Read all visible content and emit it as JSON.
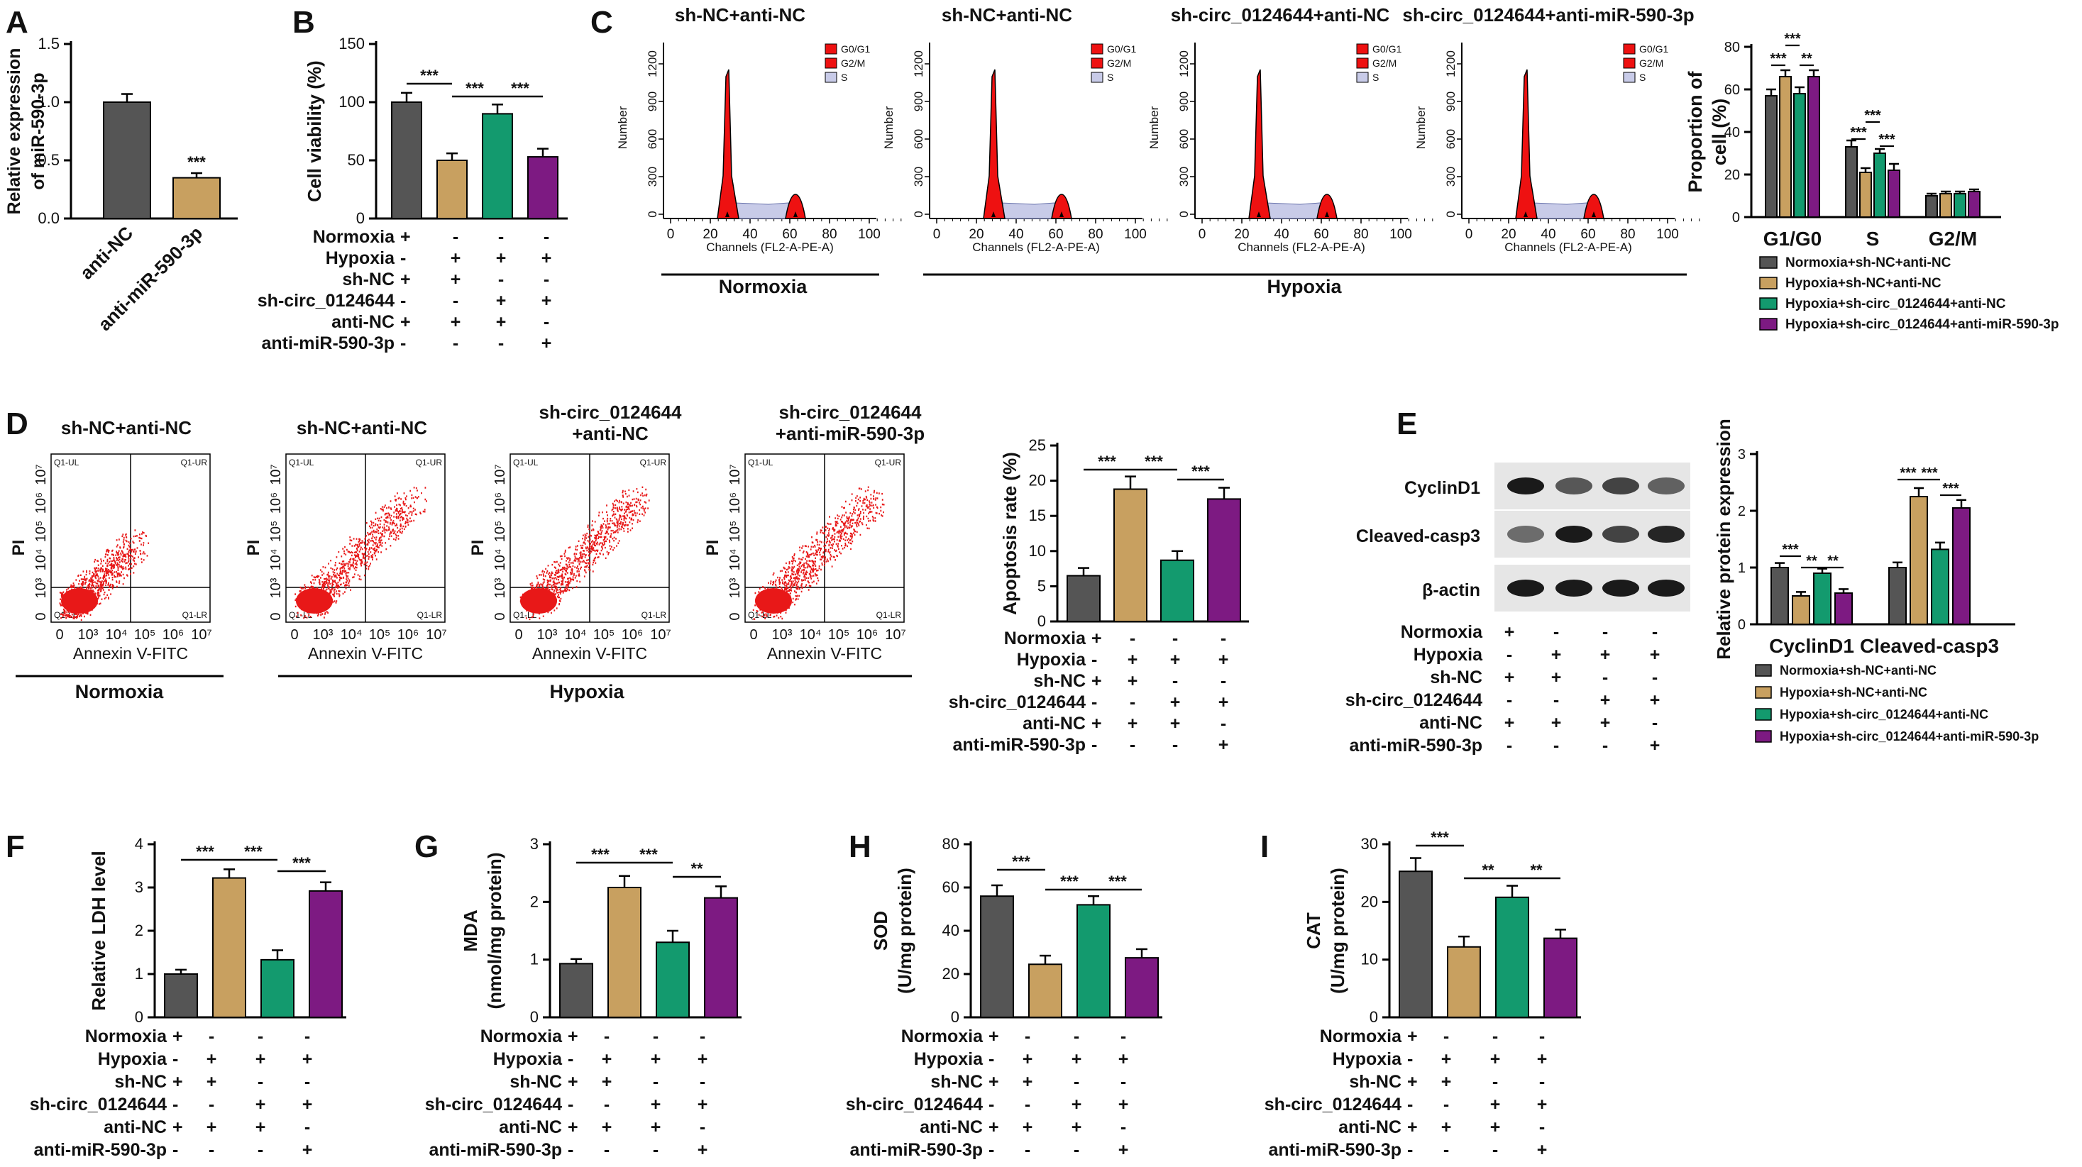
{
  "colors": {
    "c0": "#555555",
    "c1": "#c8a060",
    "c2": "#139a6e",
    "c3": "#7d1a82"
  },
  "panel_letters": [
    "A",
    "B",
    "C",
    "D",
    "E",
    "F",
    "G",
    "H",
    "I"
  ],
  "sig_labels": {
    "s3": "***",
    "s2": "**"
  },
  "condition_table_groups": {
    "cond4": {
      "rows": [
        "Normoxia",
        "Hypoxia",
        "sh-NC",
        "sh-circ_0124644",
        "anti-NC",
        "anti-miR-590-3p"
      ],
      "signs": [
        [
          "+",
          "-",
          "-",
          "-"
        ],
        [
          "-",
          "+",
          "+",
          "+"
        ],
        [
          "+",
          "+",
          "-",
          "-"
        ],
        [
          "-",
          "-",
          "+",
          "+"
        ],
        [
          "+",
          "+",
          "+",
          "-"
        ],
        [
          "-",
          "-",
          "-",
          "+"
        ]
      ]
    }
  },
  "groups": {
    "normoxia": "Normoxia",
    "hypoxia": "Hypoxia"
  },
  "panel_c": {
    "titles": [
      "sh-NC+anti-NC",
      "sh-NC+anti-NC",
      "sh-circ_0124644+anti-NC",
      "sh-circ_0124644+anti-miR-590-3p"
    ],
    "legend": [
      "G0/G1",
      "G2/M",
      "S"
    ],
    "ylabel": "Number",
    "xlabel": "Channels (FL2-A-PE-A)",
    "yticks": [
      "0",
      "300",
      "600",
      "900",
      "1200"
    ],
    "xticks": [
      "0",
      "20",
      "40",
      "60",
      "80",
      "100"
    ]
  },
  "panel_d": {
    "titles": [
      [
        "sh-NC+anti-NC"
      ],
      [
        "sh-NC+anti-NC"
      ],
      [
        "sh-circ_0124644",
        "+anti-NC"
      ],
      [
        "sh-circ_0124644",
        "+anti-miR-590-3p"
      ]
    ],
    "quadrants": [
      "Q1-UL",
      "Q1-UR",
      "Q1-LL",
      "Q1-LR"
    ],
    "ylabel": "PI",
    "xlabel": "Annexin V-FITC",
    "yticks": [
      "0",
      "10³",
      "10⁴",
      "10⁵",
      "10⁶",
      "10⁷"
    ],
    "xticks": [
      "0",
      "10³",
      "10⁴",
      "10⁵",
      "10⁶",
      "10⁷"
    ]
  },
  "panel_e": {
    "bands": [
      "CyclinD1",
      "Cleaved-casp3",
      "β-actin"
    ]
  },
  "legend4": [
    "Normoxia+sh-NC+anti-NC",
    "Hypoxia+sh-NC+anti-NC",
    "Hypoxia+sh-circ_0124644+anti-NC",
    "Hypoxia+sh-circ_0124644+anti-miR-590-3p"
  ],
  "chart_data": [
    {
      "id": "A",
      "type": "bar",
      "categories": [
        "anti-NC",
        "anti-miR-590-3p"
      ],
      "values": [
        1.0,
        0.35
      ],
      "errors": [
        0.07,
        0.04
      ],
      "ylabel": "Relative expression of miR-590-3p",
      "ylim": [
        0,
        1.5
      ],
      "yticks": [
        "0.0",
        "0.5",
        "1.0",
        "1.5"
      ],
      "sig": [
        {
          "label": "***",
          "on": 1
        }
      ]
    },
    {
      "id": "B",
      "type": "bar",
      "categories": [
        "1",
        "2",
        "3",
        "4"
      ],
      "values": [
        100,
        50,
        90,
        53
      ],
      "errors": [
        8,
        6,
        8,
        7
      ],
      "ylabel": "Cell viability (%)",
      "ylim": [
        0,
        150
      ],
      "yticks": [
        "0",
        "50",
        "100",
        "150"
      ],
      "brackets": [
        {
          "a": 0,
          "b": 1,
          "label": "***"
        },
        {
          "a": 1,
          "b": 2,
          "label": "***"
        },
        {
          "a": 2,
          "b": 3,
          "label": "***"
        }
      ]
    },
    {
      "id": "C_bar",
      "type": "bar",
      "categories": [
        "G1/G0",
        "S",
        "G2/M"
      ],
      "series": [
        {
          "name": "Normoxia+sh-NC+anti-NC",
          "values": [
            57,
            33,
            10
          ]
        },
        {
          "name": "Hypoxia+sh-NC+anti-NC",
          "values": [
            66,
            21,
            11
          ]
        },
        {
          "name": "Hypoxia+sh-circ_0124644+anti-NC",
          "values": [
            58,
            30,
            11
          ]
        },
        {
          "name": "Hypoxia+sh-circ_0124644+anti-miR-590-3p",
          "values": [
            66,
            22,
            12
          ]
        }
      ],
      "errors": [
        [
          3,
          3,
          1
        ],
        [
          3,
          2,
          1
        ],
        [
          3,
          2,
          1
        ],
        [
          3,
          3,
          1
        ]
      ],
      "ylabel": "Proportion of cell (%)",
      "ylim": [
        0,
        80
      ],
      "yticks": [
        "0",
        "20",
        "40",
        "60",
        "80"
      ],
      "sig_labels_by_category": [
        [
          "***",
          "***",
          "**"
        ],
        [
          "***",
          "***",
          "***"
        ],
        []
      ]
    },
    {
      "id": "D",
      "type": "bar",
      "categories": [
        "1",
        "2",
        "3",
        "4"
      ],
      "values": [
        6.5,
        18.8,
        8.7,
        17.4
      ],
      "errors": [
        1.1,
        1.8,
        1.3,
        1.6
      ],
      "ylabel": "Apoptosis rate (%)",
      "ylim": [
        0,
        25
      ],
      "yticks": [
        "0",
        "5",
        "10",
        "15",
        "20",
        "25"
      ],
      "brackets": [
        {
          "a": 0,
          "b": 1,
          "label": "***"
        },
        {
          "a": 1,
          "b": 2,
          "label": "***"
        },
        {
          "a": 2,
          "b": 3,
          "label": "***"
        }
      ]
    },
    {
      "id": "E_bar",
      "type": "bar",
      "categories": [
        "CyclinD1",
        "Cleaved-casp3"
      ],
      "series": [
        {
          "name": "Normoxia+sh-NC+anti-NC",
          "values": [
            1.0,
            1.0
          ]
        },
        {
          "name": "Hypoxia+sh-NC+anti-NC",
          "values": [
            0.5,
            2.25
          ]
        },
        {
          "name": "Hypoxia+sh-circ_0124644+anti-NC",
          "values": [
            0.9,
            1.32
          ]
        },
        {
          "name": "Hypoxia+sh-circ_0124644+anti-miR-590-3p",
          "values": [
            0.55,
            2.05
          ]
        }
      ],
      "errors": [
        [
          0.08,
          0.09
        ],
        [
          0.07,
          0.15
        ],
        [
          0.08,
          0.12
        ],
        [
          0.07,
          0.14
        ]
      ],
      "ylabel": "Relative protein expression",
      "ylim": [
        0,
        3
      ],
      "yticks": [
        "0",
        "1",
        "2",
        "3"
      ],
      "sig_labels_by_category": [
        [
          "***",
          "**",
          "**"
        ],
        [
          "***",
          "***",
          "***"
        ]
      ]
    },
    {
      "id": "F",
      "type": "bar",
      "categories": [
        "1",
        "2",
        "3",
        "4"
      ],
      "values": [
        1.0,
        3.22,
        1.33,
        2.92
      ],
      "errors": [
        0.1,
        0.2,
        0.22,
        0.2
      ],
      "ylabel": "Relative LDH level",
      "ylim": [
        0,
        4
      ],
      "yticks": [
        "0",
        "1",
        "2",
        "3",
        "4"
      ],
      "brackets": [
        {
          "a": 0,
          "b": 1,
          "label": "***"
        },
        {
          "a": 1,
          "b": 2,
          "label": "***"
        },
        {
          "a": 2,
          "b": 3,
          "label": "***"
        }
      ]
    },
    {
      "id": "G",
      "type": "bar",
      "categories": [
        "1",
        "2",
        "3",
        "4"
      ],
      "values": [
        0.93,
        2.25,
        1.3,
        2.07
      ],
      "errors": [
        0.08,
        0.2,
        0.2,
        0.2
      ],
      "ylabel": "MDA (nmol/mg protein)",
      "ylim": [
        0,
        3
      ],
      "yticks": [
        "0",
        "1",
        "2",
        "3"
      ],
      "brackets": [
        {
          "a": 0,
          "b": 1,
          "label": "***"
        },
        {
          "a": 1,
          "b": 2,
          "label": "***"
        },
        {
          "a": 2,
          "b": 3,
          "label": "**"
        }
      ]
    },
    {
      "id": "H",
      "type": "bar",
      "categories": [
        "1",
        "2",
        "3",
        "4"
      ],
      "values": [
        56,
        24.5,
        52,
        27.5
      ],
      "errors": [
        5,
        4,
        4,
        4
      ],
      "ylabel": "SOD (U/mg protein)",
      "ylim": [
        0,
        80
      ],
      "yticks": [
        "0",
        "20",
        "40",
        "60",
        "80"
      ],
      "brackets": [
        {
          "a": 0,
          "b": 1,
          "label": "***"
        },
        {
          "a": 1,
          "b": 2,
          "label": "***"
        },
        {
          "a": 2,
          "b": 3,
          "label": "***"
        }
      ]
    },
    {
      "id": "I",
      "type": "bar",
      "categories": [
        "1",
        "2",
        "3",
        "4"
      ],
      "values": [
        25.3,
        12.2,
        20.8,
        13.7
      ],
      "errors": [
        2.3,
        1.8,
        2,
        1.5
      ],
      "ylabel": "CAT (U/mg protein)",
      "ylim": [
        0,
        30
      ],
      "yticks": [
        "0",
        "10",
        "20",
        "30"
      ],
      "brackets": [
        {
          "a": 0,
          "b": 1,
          "label": "***"
        },
        {
          "a": 1,
          "b": 2,
          "label": "**"
        },
        {
          "a": 2,
          "b": 3,
          "label": "**"
        }
      ]
    }
  ]
}
